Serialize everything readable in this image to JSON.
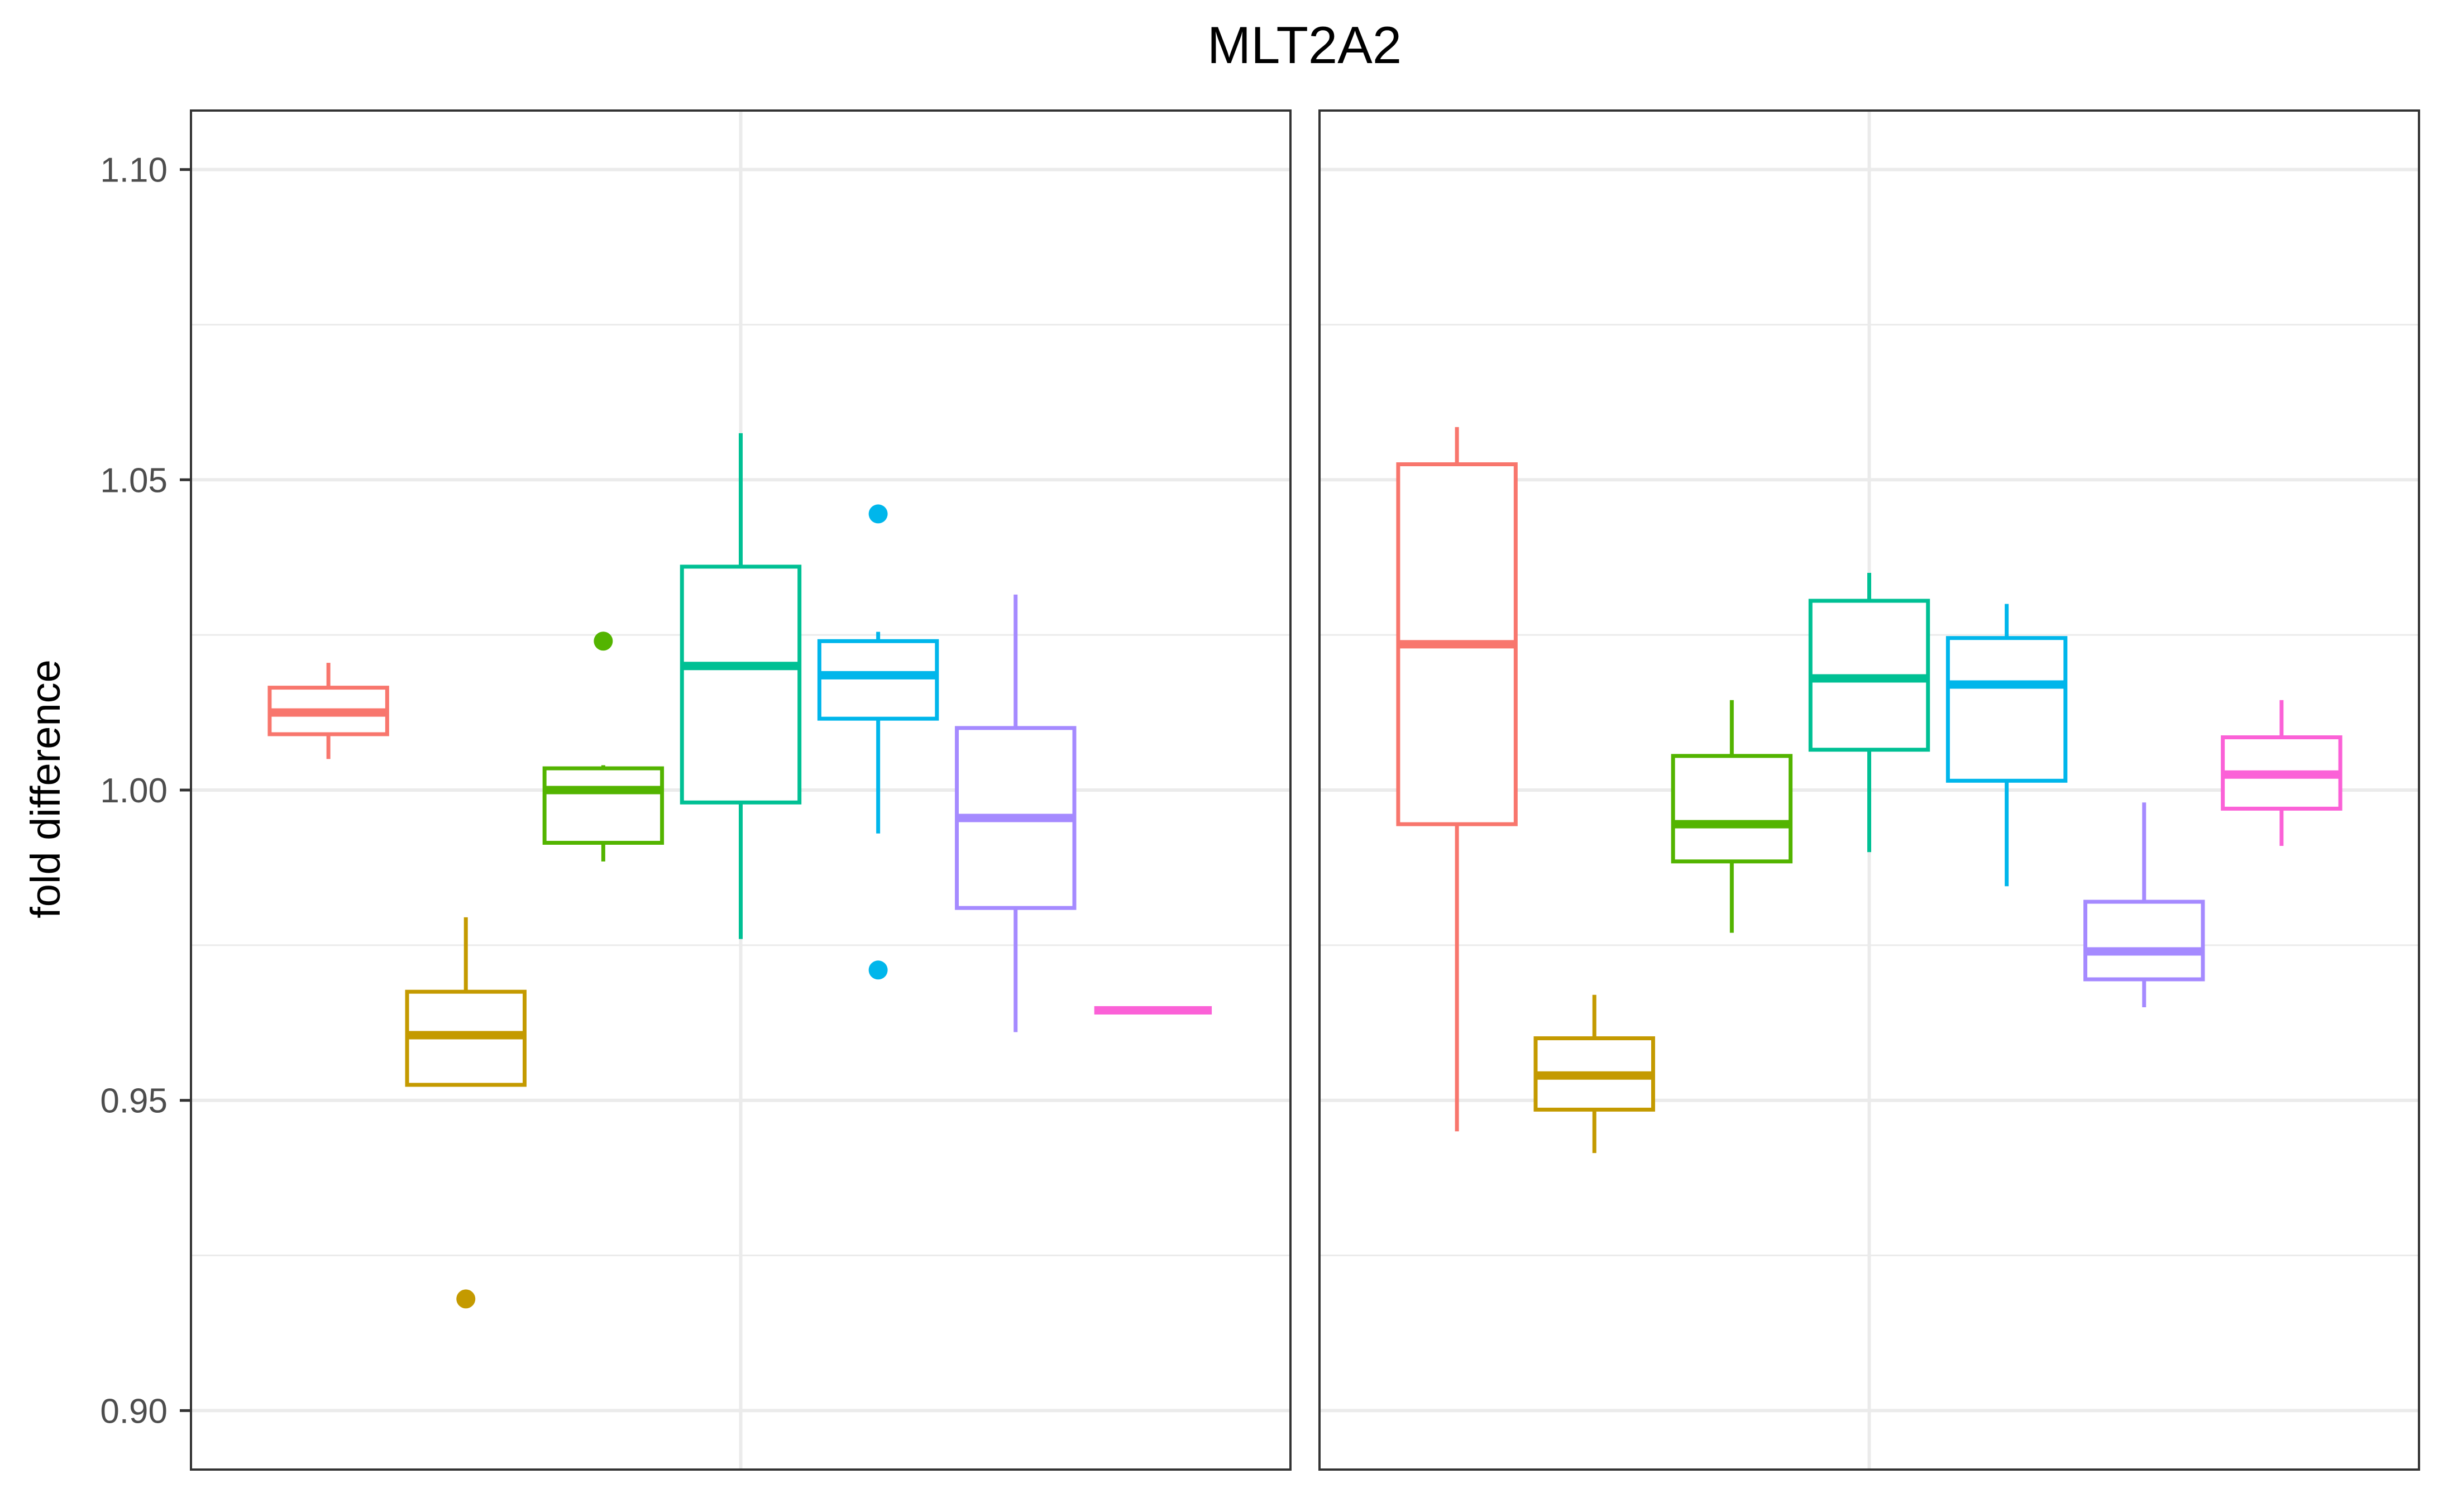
{
  "chart_data": {
    "type": "boxplot",
    "title": "MLT2A2",
    "ylabel": "fold difference",
    "xlabel": "",
    "ylim": [
      0.8905,
      1.1095
    ],
    "y_ticks": [
      0.9,
      0.95,
      1.0,
      1.05,
      1.1
    ],
    "y_tick_labels": [
      "0.90",
      "0.95",
      "1.00",
      "1.05",
      "1.10"
    ],
    "grid": true,
    "colors": [
      "#F8766D",
      "#C49A00",
      "#53B400",
      "#00C094",
      "#00B6EB",
      "#A58AFF",
      "#FB61D7"
    ],
    "panels": [
      {
        "boxes": [
          {
            "whisker_low": 1.005,
            "q1": 1.009,
            "median": 1.0125,
            "q3": 1.0165,
            "whisker_high": 1.0205,
            "outliers": []
          },
          {
            "whisker_low": 0.9525,
            "q1": 0.9525,
            "median": 0.9605,
            "q3": 0.9675,
            "whisker_high": 0.9795,
            "outliers": [
              0.918
            ]
          },
          {
            "whisker_low": 0.9885,
            "q1": 0.9915,
            "median": 1.0,
            "q3": 1.0035,
            "whisker_high": 1.004,
            "outliers": [
              1.024
            ]
          },
          {
            "whisker_low": 0.976,
            "q1": 0.998,
            "median": 1.02,
            "q3": 1.036,
            "whisker_high": 1.0575,
            "outliers": []
          },
          {
            "whisker_low": 0.993,
            "q1": 1.0115,
            "median": 1.0185,
            "q3": 1.024,
            "whisker_high": 1.0255,
            "outliers": [
              1.0445,
              0.971
            ]
          },
          {
            "whisker_low": 0.961,
            "q1": 0.981,
            "median": 0.9955,
            "q3": 1.01,
            "whisker_high": 1.0315,
            "outliers": []
          },
          {
            "whisker_low": 0.9645,
            "q1": 0.9645,
            "median": 0.9645,
            "q3": 0.9645,
            "whisker_high": 0.9645,
            "outliers": []
          }
        ]
      },
      {
        "boxes": [
          {
            "whisker_low": 0.945,
            "q1": 0.9945,
            "median": 1.0235,
            "q3": 1.0525,
            "whisker_high": 1.0585,
            "outliers": []
          },
          {
            "whisker_low": 0.9415,
            "q1": 0.9485,
            "median": 0.954,
            "q3": 0.96,
            "whisker_high": 0.967,
            "outliers": []
          },
          {
            "whisker_low": 0.977,
            "q1": 0.9885,
            "median": 0.9945,
            "q3": 1.0055,
            "whisker_high": 1.0145,
            "outliers": []
          },
          {
            "whisker_low": 0.99,
            "q1": 1.0065,
            "median": 1.018,
            "q3": 1.0305,
            "whisker_high": 1.035,
            "outliers": []
          },
          {
            "whisker_low": 0.9845,
            "q1": 1.0015,
            "median": 1.017,
            "q3": 1.0245,
            "whisker_high": 1.03,
            "outliers": []
          },
          {
            "whisker_low": 0.965,
            "q1": 0.9695,
            "median": 0.974,
            "q3": 0.982,
            "whisker_high": 0.998,
            "outliers": []
          },
          {
            "whisker_low": 0.991,
            "q1": 0.997,
            "median": 1.0025,
            "q3": 1.0085,
            "whisker_high": 1.0145,
            "outliers": []
          }
        ]
      }
    ]
  }
}
